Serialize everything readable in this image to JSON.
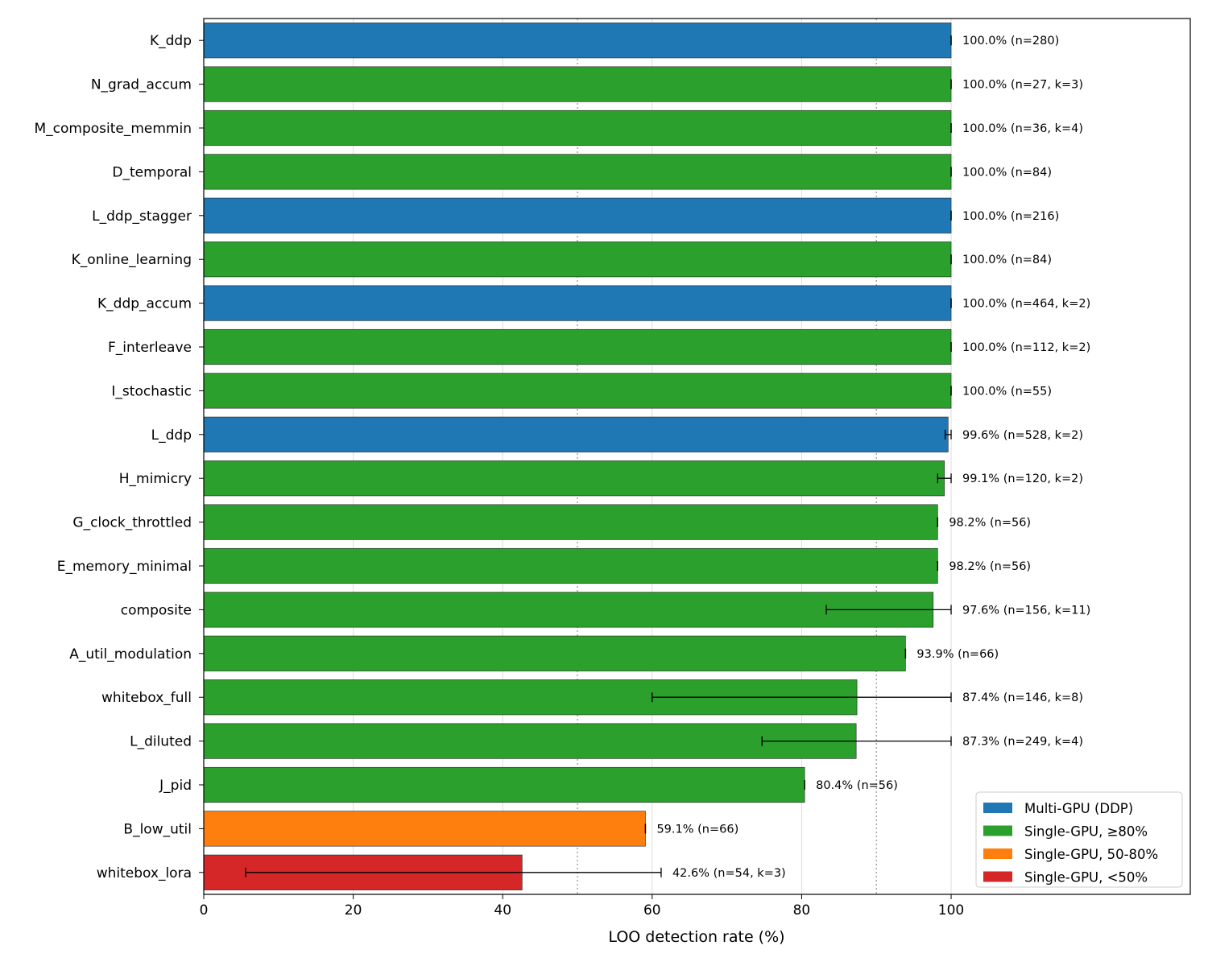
{
  "chart_data": {
    "type": "bar",
    "orientation": "horizontal",
    "title": "",
    "xlabel": "LOO detection rate (%)",
    "ylabel": "",
    "xlim": [
      0,
      132
    ],
    "xticks": [
      0,
      20,
      40,
      60,
      80,
      100
    ],
    "reference_lines": [
      50,
      90
    ],
    "grid": true,
    "legend_position": "lower-right",
    "groups": [
      {
        "name": "Multi-GPU (DDP)",
        "color": "#1f77b4"
      },
      {
        "name": "Single-GPU, ≥80%",
        "color": "#2ca02c"
      },
      {
        "name": "Single-GPU, 50-80%",
        "color": "#ff7f0e"
      },
      {
        "name": "Single-GPU, <50%",
        "color": "#d62728"
      }
    ],
    "bars": [
      {
        "category": "K_ddp",
        "value": 100.0,
        "err_low": 100.0,
        "err_high": 100.0,
        "group": 0,
        "label": "100.0% (n=280)"
      },
      {
        "category": "N_grad_accum",
        "value": 100.0,
        "err_low": 100.0,
        "err_high": 100.0,
        "group": 1,
        "label": "100.0% (n=27, k=3)"
      },
      {
        "category": "M_composite_memmin",
        "value": 100.0,
        "err_low": 100.0,
        "err_high": 100.0,
        "group": 1,
        "label": "100.0% (n=36, k=4)"
      },
      {
        "category": "D_temporal",
        "value": 100.0,
        "err_low": 100.0,
        "err_high": 100.0,
        "group": 1,
        "label": "100.0% (n=84)"
      },
      {
        "category": "L_ddp_stagger",
        "value": 100.0,
        "err_low": 100.0,
        "err_high": 100.0,
        "group": 0,
        "label": "100.0% (n=216)"
      },
      {
        "category": "K_online_learning",
        "value": 100.0,
        "err_low": 100.0,
        "err_high": 100.0,
        "group": 1,
        "label": "100.0% (n=84)"
      },
      {
        "category": "K_ddp_accum",
        "value": 100.0,
        "err_low": 100.0,
        "err_high": 100.0,
        "group": 0,
        "label": "100.0% (n=464, k=2)"
      },
      {
        "category": "F_interleave",
        "value": 100.0,
        "err_low": 100.0,
        "err_high": 100.0,
        "group": 1,
        "label": "100.0% (n=112, k=2)"
      },
      {
        "category": "I_stochastic",
        "value": 100.0,
        "err_low": 100.0,
        "err_high": 100.0,
        "group": 1,
        "label": "100.0% (n=55)"
      },
      {
        "category": "L_ddp",
        "value": 99.6,
        "err_low": 99.2,
        "err_high": 100.0,
        "group": 0,
        "label": "99.6% (n=528, k=2)"
      },
      {
        "category": "H_mimicry",
        "value": 99.1,
        "err_low": 98.2,
        "err_high": 100.0,
        "group": 1,
        "label": "99.1% (n=120, k=2)"
      },
      {
        "category": "G_clock_throttled",
        "value": 98.2,
        "err_low": 98.2,
        "err_high": 98.2,
        "group": 1,
        "label": "98.2% (n=56)"
      },
      {
        "category": "E_memory_minimal",
        "value": 98.2,
        "err_low": 98.2,
        "err_high": 98.2,
        "group": 1,
        "label": "98.2% (n=56)"
      },
      {
        "category": "composite",
        "value": 97.6,
        "err_low": 83.3,
        "err_high": 100.0,
        "group": 1,
        "label": "97.6% (n=156, k=11)"
      },
      {
        "category": "A_util_modulation",
        "value": 93.9,
        "err_low": 93.9,
        "err_high": 93.9,
        "group": 1,
        "label": "93.9% (n=66)"
      },
      {
        "category": "whitebox_full",
        "value": 87.4,
        "err_low": 60.0,
        "err_high": 100.0,
        "group": 1,
        "label": "87.4% (n=146, k=8)"
      },
      {
        "category": "L_diluted",
        "value": 87.3,
        "err_low": 74.7,
        "err_high": 100.0,
        "group": 1,
        "label": "87.3% (n=249, k=4)"
      },
      {
        "category": "J_pid",
        "value": 80.4,
        "err_low": 80.4,
        "err_high": 80.4,
        "group": 1,
        "label": "80.4% (n=56)"
      },
      {
        "category": "B_low_util",
        "value": 59.1,
        "err_low": 59.1,
        "err_high": 59.1,
        "group": 2,
        "label": "59.1% (n=66)"
      },
      {
        "category": "whitebox_lora",
        "value": 42.6,
        "err_low": 5.6,
        "err_high": 61.2,
        "group": 3,
        "label": "42.6% (n=54, k=3)"
      }
    ]
  }
}
